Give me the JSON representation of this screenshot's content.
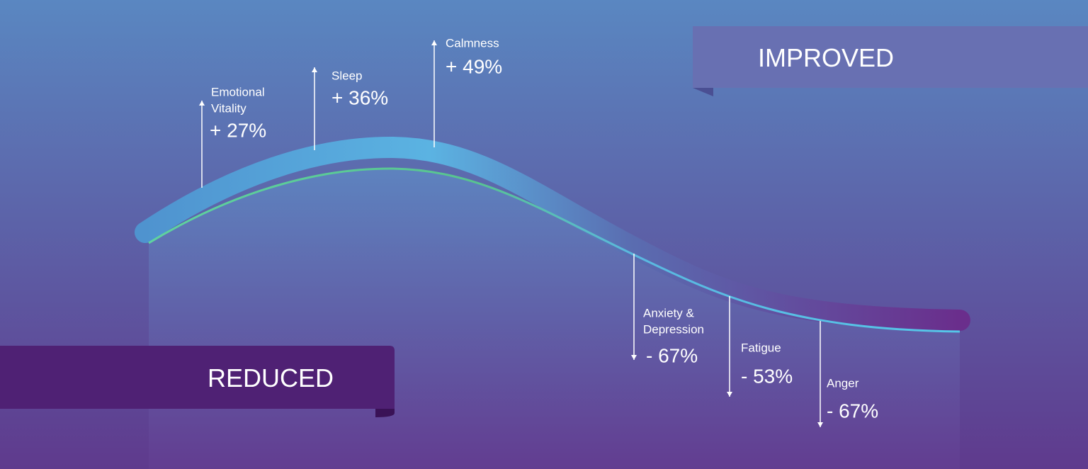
{
  "banners": {
    "improved": "IMPROVED",
    "reduced": "REDUCED"
  },
  "improved_items": [
    {
      "label": [
        "Emotional",
        "Vitality"
      ],
      "value": "+ 27%"
    },
    {
      "label": [
        "Sleep"
      ],
      "value": "+ 36%"
    },
    {
      "label": [
        "Calmness"
      ],
      "value": "+ 49%"
    }
  ],
  "reduced_items": [
    {
      "label": [
        "Anxiety &",
        "Depression"
      ],
      "value": "- 67%"
    },
    {
      "label": [
        "Fatigue"
      ],
      "value": "- 53%"
    },
    {
      "label": [
        "Anger"
      ],
      "value": "- 67%"
    }
  ]
}
